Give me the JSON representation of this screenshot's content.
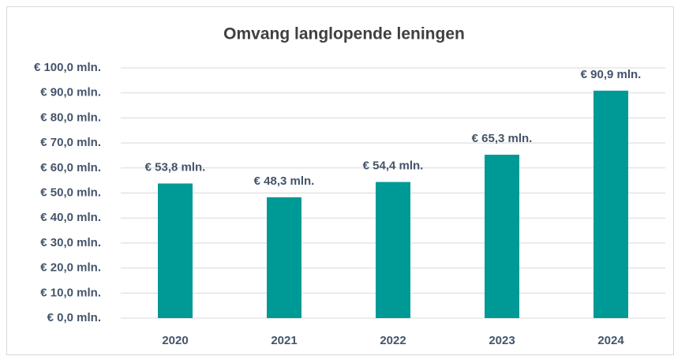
{
  "chart_data": {
    "type": "bar",
    "title": "Omvang langlopende leningen",
    "categories": [
      "2020",
      "2021",
      "2022",
      "2023",
      "2024"
    ],
    "values": [
      53.8,
      48.3,
      54.4,
      65.3,
      90.9
    ],
    "value_labels": [
      "€ 53,8 mln.",
      "€ 48,3 mln.",
      "€ 54,4 mln.",
      "€ 65,3 mln.",
      "€ 90,9 mln."
    ],
    "color": "#009a96",
    "ylim": [
      0,
      100
    ],
    "yticks": [
      {
        "value": 0,
        "label": "€ 0,0 mln."
      },
      {
        "value": 10,
        "label": "€ 10,0 mln."
      },
      {
        "value": 20,
        "label": "€ 20,0 mln."
      },
      {
        "value": 30,
        "label": "€ 30,0 mln."
      },
      {
        "value": 40,
        "label": "€ 40,0 mln."
      },
      {
        "value": 50,
        "label": "€ 50,0 mln."
      },
      {
        "value": 60,
        "label": "€ 60,0 mln."
      },
      {
        "value": 70,
        "label": "€ 70,0 mln."
      },
      {
        "value": 80,
        "label": "€ 80,0 mln."
      },
      {
        "value": 90,
        "label": "€ 90,0 mln."
      },
      {
        "value": 100,
        "label": "€ 100,0 mln."
      }
    ],
    "grid": true
  }
}
